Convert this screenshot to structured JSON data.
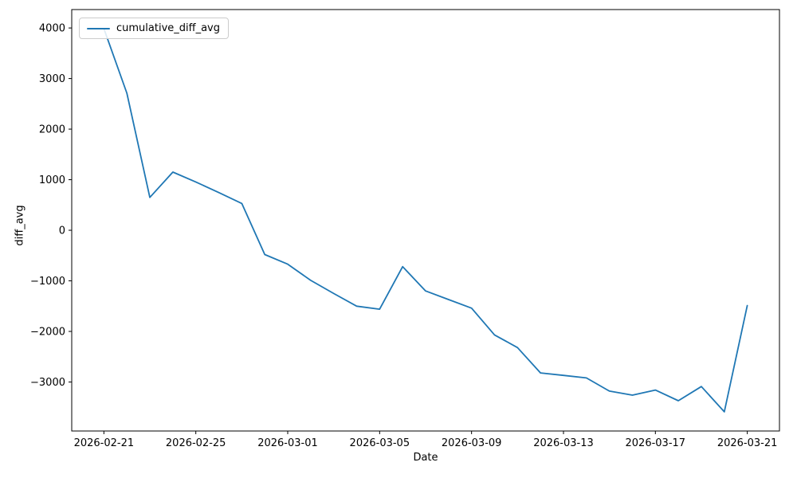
{
  "figure": {
    "background": "#ffffff"
  },
  "chart_data": {
    "type": "line",
    "title": "",
    "xlabel": "Date",
    "ylabel": "diff_avg",
    "grid": false,
    "legend": {
      "position": "upper-left",
      "entries": [
        "cumulative_diff_avg"
      ]
    },
    "x": [
      "2026-02-21",
      "2026-02-22",
      "2026-02-23",
      "2026-02-24",
      "2026-02-25",
      "2026-02-26",
      "2026-02-27",
      "2026-02-28",
      "2026-03-01",
      "2026-03-02",
      "2026-03-03",
      "2026-03-04",
      "2026-03-05",
      "2026-03-06",
      "2026-03-07",
      "2026-03-08",
      "2026-03-09",
      "2026-03-10",
      "2026-03-11",
      "2026-03-12",
      "2026-03-13",
      "2026-03-14",
      "2026-03-15",
      "2026-03-16",
      "2026-03-17",
      "2026-03-18",
      "2026-03-19",
      "2026-03-20",
      "2026-03-21"
    ],
    "series": [
      {
        "name": "cumulative_diff_avg",
        "color": "#1f77b4",
        "values": [
          3985,
          2710,
          650,
          1150,
          955,
          745,
          530,
          -480,
          -670,
          -990,
          -1250,
          -1500,
          -1560,
          -720,
          -1200,
          -1370,
          -1540,
          -2070,
          -2320,
          -2820,
          -2870,
          -2920,
          -3180,
          -3260,
          -3160,
          -3370,
          -3090,
          -3590,
          -1490
        ]
      }
    ],
    "x_tick_labels": [
      "2026-02-21",
      "2026-02-25",
      "2026-03-01",
      "2026-03-05",
      "2026-03-09",
      "2026-03-13",
      "2026-03-17",
      "2026-03-21"
    ],
    "y_tick_values": [
      4000,
      3000,
      2000,
      1000,
      0,
      -1000,
      -2000,
      -3000
    ],
    "y_tick_labels": [
      "4000",
      "3000",
      "2000",
      "1000",
      "0",
      "−1000",
      "−2000",
      "−3000"
    ],
    "ylim": [
      -3969,
      4364
    ],
    "xlim_margin_fraction": 0.05
  }
}
